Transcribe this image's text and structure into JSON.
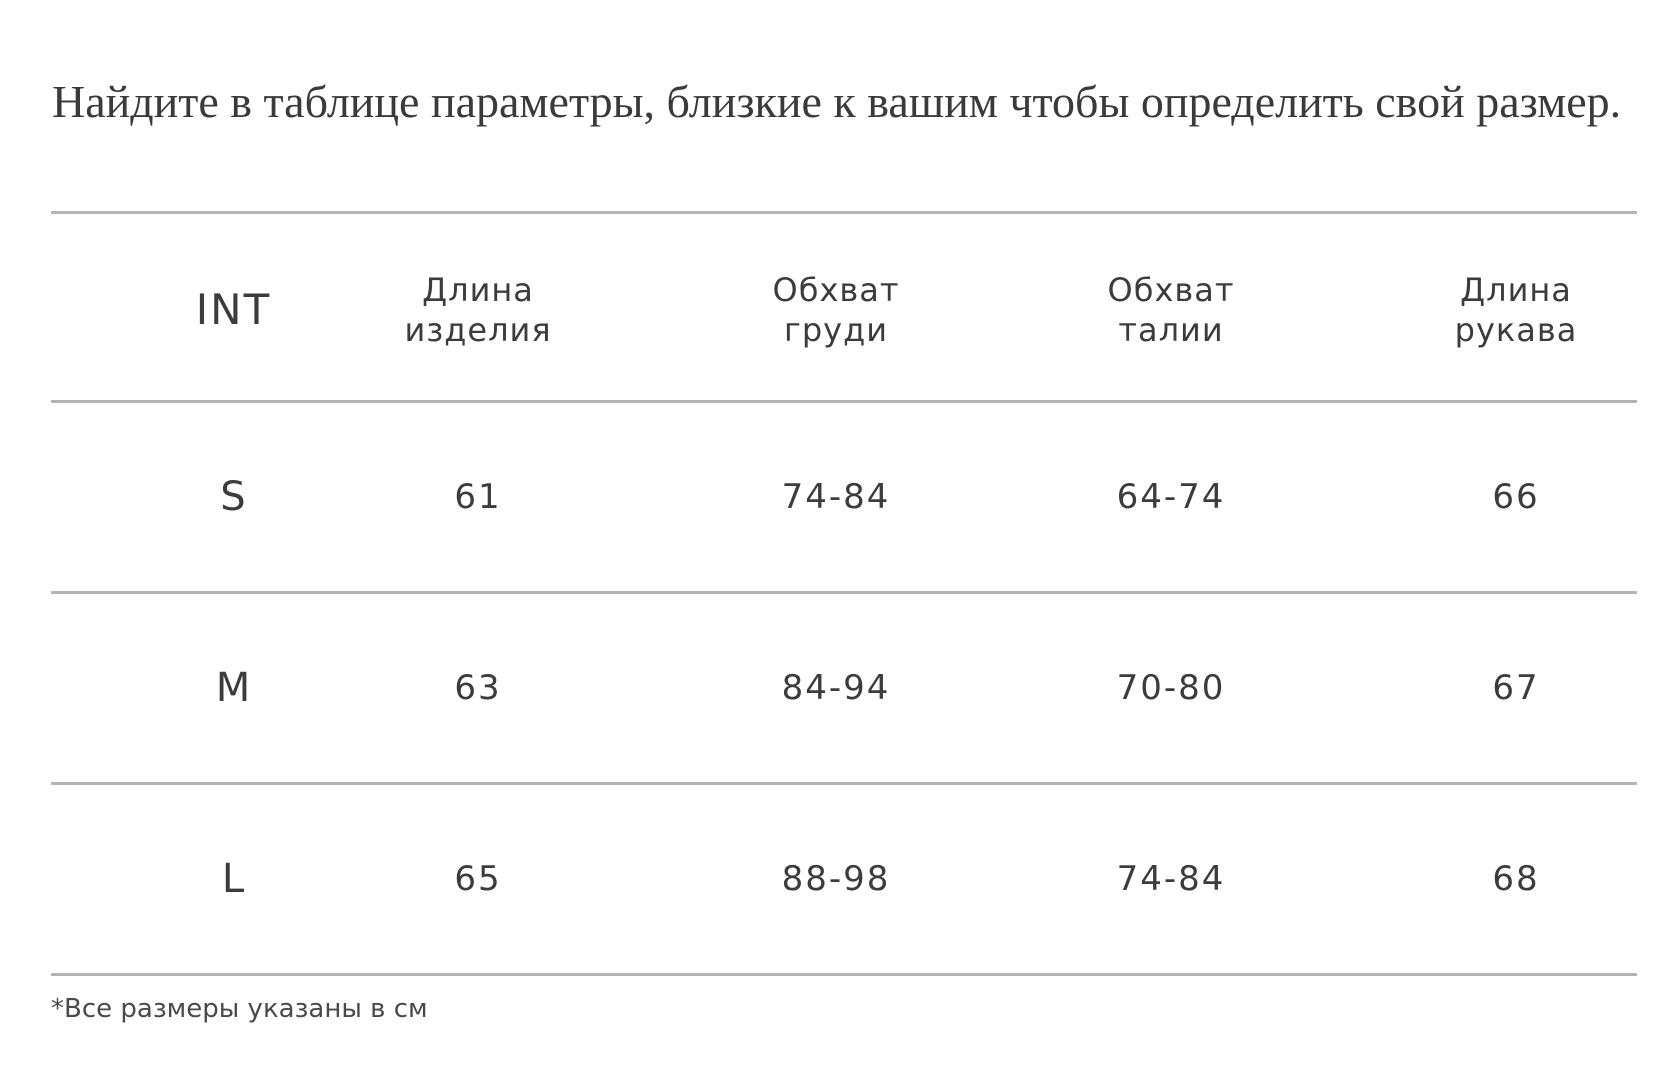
{
  "heading": "Найдите в таблице параметры, близкие к вашим чтобы определить свой размер.",
  "table": {
    "columns": [
      {
        "lines": [
          "INT"
        ]
      },
      {
        "lines": [
          "Длина",
          "изделия"
        ]
      },
      {
        "lines": [
          "Обхват",
          "груди"
        ]
      },
      {
        "lines": [
          "Обхват",
          "талии"
        ]
      },
      {
        "lines": [
          "Длина",
          "рукава"
        ]
      }
    ],
    "rows": [
      {
        "size": "S",
        "length": "61",
        "chest": "74-84",
        "waist": "64-74",
        "sleeve": "66"
      },
      {
        "size": "M",
        "length": "63",
        "chest": "84-94",
        "waist": "70-80",
        "sleeve": "67"
      },
      {
        "size": "L",
        "length": "65",
        "chest": "88-98",
        "waist": "74-84",
        "sleeve": "68"
      }
    ]
  },
  "note": "*Все размеры указаны в см",
  "colors": {
    "text": "#3c3c3c",
    "rule": "#b4b4b4",
    "background": "#ffffff"
  }
}
